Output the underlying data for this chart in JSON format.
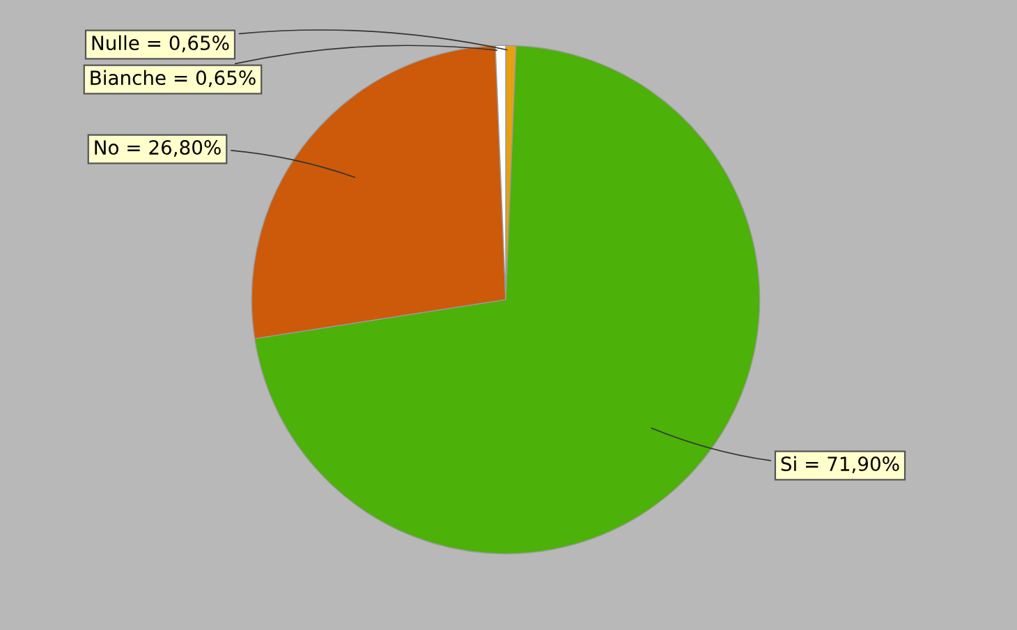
{
  "chart_data": {
    "type": "pie",
    "categories": [
      "Nulle",
      "Si",
      "No",
      "Bianche"
    ],
    "values": [
      0.65,
      71.9,
      26.8,
      0.65
    ],
    "colors": [
      "#e8a010",
      "#4cb108",
      "#cc5a0a",
      "#ffffff"
    ],
    "value_labels": [
      "= 0,65%",
      "= 71,90%",
      "= 26,80%",
      "= 0,65%"
    ]
  }
}
